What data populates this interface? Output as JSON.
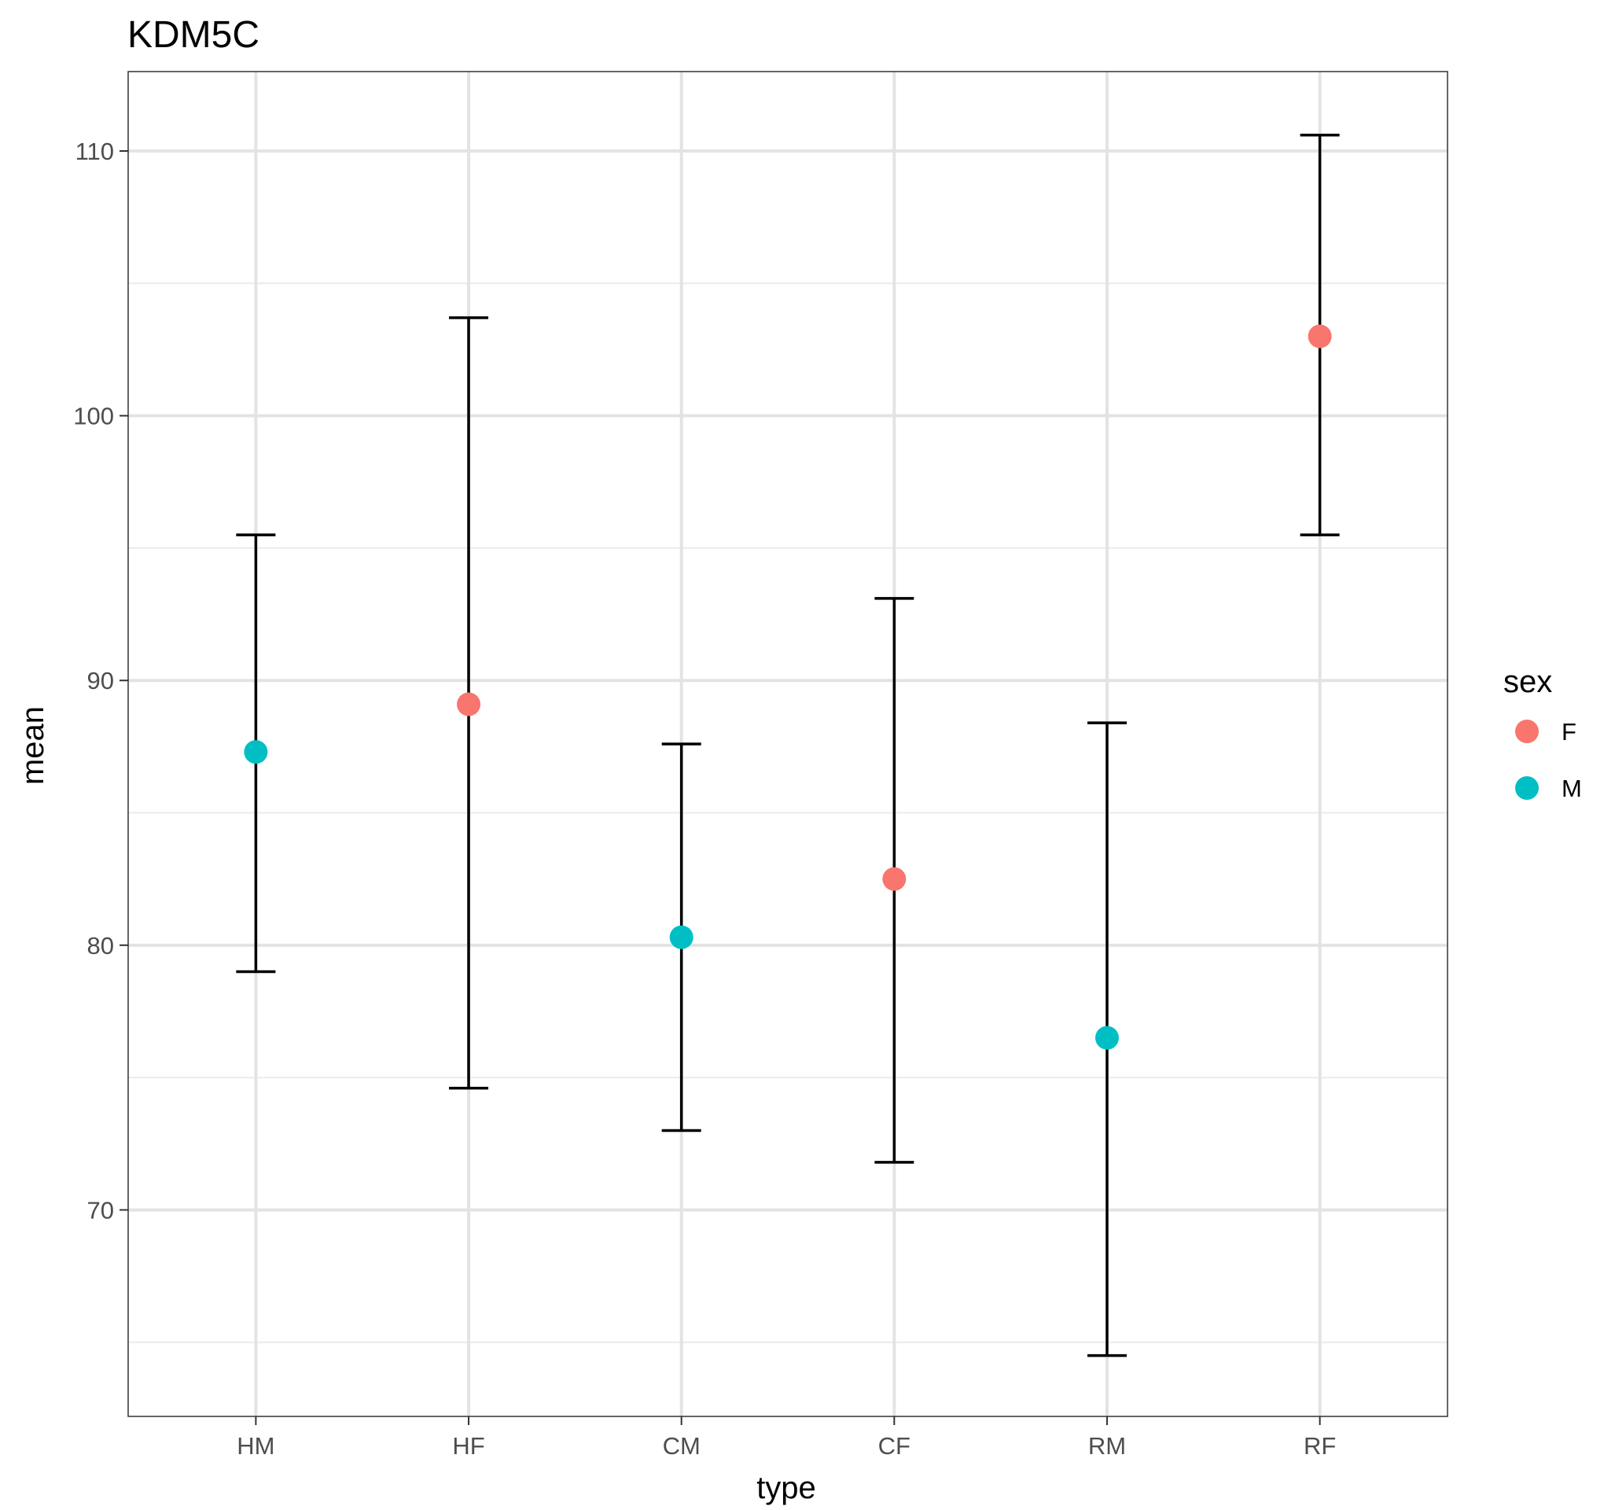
{
  "chart_data": {
    "type": "scatter",
    "title": "KDM5C",
    "xlabel": "type",
    "ylabel": "mean",
    "categories": [
      "HM",
      "HF",
      "CM",
      "CF",
      "RM",
      "RF"
    ],
    "ylim": [
      62.2,
      113.0
    ],
    "yticks": [
      70,
      80,
      90,
      100,
      110
    ],
    "yminor": [
      65,
      75,
      85,
      95,
      105
    ],
    "grid": true,
    "legend": {
      "title": "sex",
      "position": "right",
      "entries": [
        {
          "label": "F",
          "color": "#F8766D"
        },
        {
          "label": "M",
          "color": "#00BFC4"
        }
      ]
    },
    "points": [
      {
        "type": "HM",
        "sex": "M",
        "mean": 87.3,
        "lower": 79.0,
        "upper": 95.5
      },
      {
        "type": "HF",
        "sex": "F",
        "mean": 89.1,
        "lower": 74.6,
        "upper": 103.7
      },
      {
        "type": "CM",
        "sex": "M",
        "mean": 80.3,
        "lower": 73.0,
        "upper": 87.6
      },
      {
        "type": "CF",
        "sex": "F",
        "mean": 82.5,
        "lower": 71.8,
        "upper": 93.1
      },
      {
        "type": "RM",
        "sex": "M",
        "mean": 76.5,
        "lower": 64.5,
        "upper": 88.4
      },
      {
        "type": "RF",
        "sex": "F",
        "mean": 103.0,
        "lower": 95.5,
        "upper": 110.6
      }
    ]
  }
}
